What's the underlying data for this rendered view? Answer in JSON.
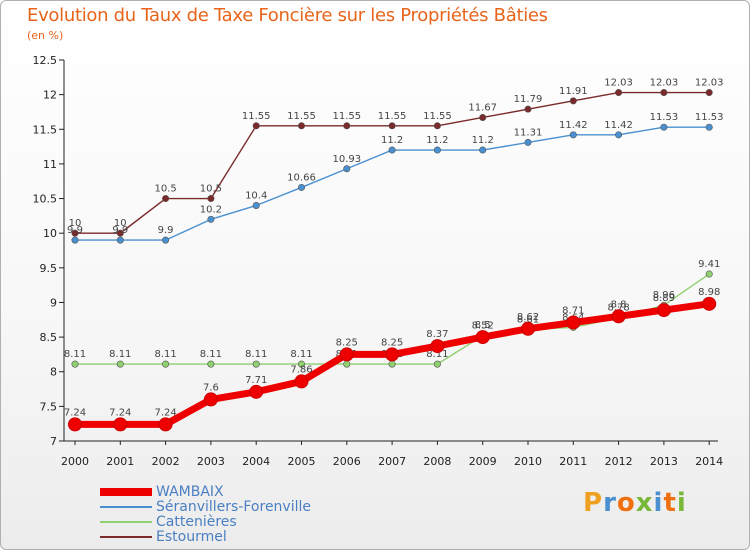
{
  "header": {
    "title": "Evolution du Taux de Taxe Foncière sur les Propriétés Bâties",
    "unit": "(en %)"
  },
  "brand": {
    "logo_text": "Proxiti",
    "colors": [
      "#f0a020",
      "#4a90d0",
      "#f07010",
      "#7ab83a",
      "#4a90d0",
      "#f07010",
      "#7ab83a"
    ]
  },
  "chart_data": {
    "type": "line",
    "title": "Evolution du Taux de Taxe Foncière sur les Propriétés Bâties",
    "ylabel": "(en %)",
    "xlabel": "",
    "ylim": [
      7,
      12.5
    ],
    "yticks": [
      "7",
      "7.5",
      "8",
      "8.5",
      "9",
      "9.5",
      "10",
      "10.5",
      "11",
      "11.5",
      "12",
      "12.5"
    ],
    "grid": false,
    "legend_position": "bottom-left",
    "x": [
      "2000",
      "2001",
      "2002",
      "2003",
      "2004",
      "2005",
      "2006",
      "2007",
      "2008",
      "2009",
      "2010",
      "2011",
      "2012",
      "2013",
      "2014"
    ],
    "series": [
      {
        "name": "Estourmel",
        "color": "#7a2a2a",
        "values": [
          10,
          10,
          10.5,
          10.5,
          11.55,
          11.55,
          11.55,
          11.55,
          11.55,
          11.67,
          11.79,
          11.91,
          12.03,
          12.03,
          12.03
        ],
        "labels": [
          "10",
          "10",
          "10.5",
          "10.5",
          "11.55",
          "11.55",
          "11.55",
          "11.55",
          "11.55",
          "11.67",
          "11.79",
          "11.91",
          "12.03",
          "12.03",
          "12.03"
        ]
      },
      {
        "name": "Séranvillers-Forenville",
        "color": "#4a90d0",
        "values": [
          9.9,
          9.9,
          9.9,
          10.2,
          10.4,
          10.66,
          10.93,
          11.2,
          11.2,
          11.2,
          11.31,
          11.42,
          11.42,
          11.53,
          11.53
        ],
        "labels": [
          "9.9",
          "9.9",
          "9.9",
          "10.2",
          "10.4",
          "10.66",
          "10.93",
          "11.2",
          "11.2",
          "11.2",
          "11.31",
          "11.42",
          "11.42",
          "11.53",
          "11.53"
        ]
      },
      {
        "name": "Cattenières",
        "color": "#8fd070",
        "values": [
          8.11,
          8.11,
          8.11,
          8.11,
          8.11,
          8.11,
          8.11,
          8.11,
          8.11,
          8.52,
          8.61,
          8.64,
          8.78,
          8.96,
          9.41
        ],
        "labels": [
          "8.11",
          "8.11",
          "8.11",
          "8.11",
          "8.11",
          "8.11",
          "8.11",
          "8.11",
          "8.11",
          "8.52",
          "8.61",
          "8.64",
          "8.78",
          "8.96",
          "9.41"
        ]
      },
      {
        "name": "WAMBAIX",
        "color": "#ee0000",
        "values": [
          7.24,
          7.24,
          7.24,
          7.6,
          7.71,
          7.86,
          8.25,
          8.25,
          8.37,
          8.5,
          8.62,
          8.71,
          8.8,
          8.89,
          8.98
        ],
        "labels": [
          "7.24",
          "7.24",
          "7.24",
          "7.6",
          "7.71",
          "7.86",
          "8.25",
          "8.25",
          "8.37",
          "8.5",
          "8.62",
          "8.71",
          "8.8",
          "8.89",
          "8.98"
        ]
      }
    ],
    "legend_order": [
      "WAMBAIX",
      "Séranvillers-Forenville",
      "Cattenières",
      "Estourmel"
    ]
  }
}
